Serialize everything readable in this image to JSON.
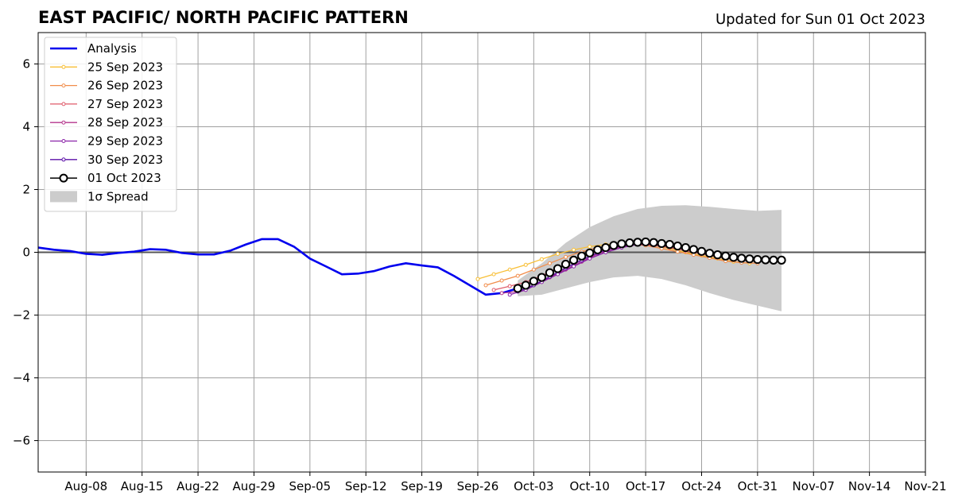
{
  "title": "EAST PACIFIC/ NORTH PACIFIC PATTERN",
  "subtitle": "Updated for Sun 01 Oct 2023",
  "chart_data": {
    "type": "line",
    "title": "EAST PACIFIC/ NORTH PACIFIC PATTERN",
    "subtitle": "Updated for Sun 01 Oct 2023",
    "xlabel": "",
    "ylabel": "",
    "x_range": [
      "2023-08-02",
      "2023-11-21"
    ],
    "ylim": [
      -7,
      7
    ],
    "x_ticks": [
      {
        "date": "2023-08-08",
        "label": "Aug-08"
      },
      {
        "date": "2023-08-15",
        "label": "Aug-15"
      },
      {
        "date": "2023-08-22",
        "label": "Aug-22"
      },
      {
        "date": "2023-08-29",
        "label": "Aug-29"
      },
      {
        "date": "2023-09-05",
        "label": "Sep-05"
      },
      {
        "date": "2023-09-12",
        "label": "Sep-12"
      },
      {
        "date": "2023-09-19",
        "label": "Sep-19"
      },
      {
        "date": "2023-09-26",
        "label": "Sep-26"
      },
      {
        "date": "2023-10-03",
        "label": "Oct-03"
      },
      {
        "date": "2023-10-10",
        "label": "Oct-10"
      },
      {
        "date": "2023-10-17",
        "label": "Oct-17"
      },
      {
        "date": "2023-10-24",
        "label": "Oct-24"
      },
      {
        "date": "2023-10-31",
        "label": "Oct-31"
      },
      {
        "date": "2023-11-07",
        "label": "Nov-07"
      },
      {
        "date": "2023-11-14",
        "label": "Nov-14"
      },
      {
        "date": "2023-11-21",
        "label": "Nov-21"
      }
    ],
    "y_ticks": [
      {
        "value": 6,
        "label": "6"
      },
      {
        "value": 4,
        "label": "4"
      },
      {
        "value": 2,
        "label": "2"
      },
      {
        "value": 0,
        "label": "0"
      },
      {
        "value": -2,
        "label": "−2"
      },
      {
        "value": -4,
        "label": "−4"
      },
      {
        "value": -6,
        "label": "−6"
      }
    ],
    "grid": true,
    "zero_line": true,
    "legend_position": "top-left",
    "analysis": {
      "name": "Analysis",
      "color": "#0000ee",
      "points": [
        [
          "2023-08-02",
          0.15
        ],
        [
          "2023-08-04",
          0.08
        ],
        [
          "2023-08-06",
          0.04
        ],
        [
          "2023-08-08",
          -0.05
        ],
        [
          "2023-08-10",
          -0.08
        ],
        [
          "2023-08-12",
          -0.02
        ],
        [
          "2023-08-14",
          0.02
        ],
        [
          "2023-08-16",
          0.1
        ],
        [
          "2023-08-18",
          0.08
        ],
        [
          "2023-08-20",
          -0.02
        ],
        [
          "2023-08-22",
          -0.07
        ],
        [
          "2023-08-24",
          -0.07
        ],
        [
          "2023-08-26",
          0.05
        ],
        [
          "2023-08-28",
          0.25
        ],
        [
          "2023-08-30",
          0.42
        ],
        [
          "2023-09-01",
          0.42
        ],
        [
          "2023-09-03",
          0.18
        ],
        [
          "2023-09-05",
          -0.2
        ],
        [
          "2023-09-07",
          -0.45
        ],
        [
          "2023-09-09",
          -0.7
        ],
        [
          "2023-09-11",
          -0.68
        ],
        [
          "2023-09-13",
          -0.6
        ],
        [
          "2023-09-15",
          -0.45
        ],
        [
          "2023-09-17",
          -0.35
        ],
        [
          "2023-09-19",
          -0.42
        ],
        [
          "2023-09-21",
          -0.48
        ],
        [
          "2023-09-23",
          -0.75
        ],
        [
          "2023-09-25",
          -1.05
        ],
        [
          "2023-09-27",
          -1.35
        ],
        [
          "2023-09-29",
          -1.3
        ],
        [
          "2023-10-01",
          -1.15
        ]
      ]
    },
    "forecasts": [
      {
        "name": "25 Sep 2023",
        "color": "#f8bf36",
        "points": [
          [
            "2023-09-26",
            -0.85
          ],
          [
            "2023-09-28",
            -0.7
          ],
          [
            "2023-09-30",
            -0.55
          ],
          [
            "2023-10-02",
            -0.4
          ],
          [
            "2023-10-04",
            -0.22
          ],
          [
            "2023-10-06",
            -0.05
          ],
          [
            "2023-10-08",
            0.08
          ],
          [
            "2023-10-10",
            0.18
          ],
          [
            "2023-10-12",
            0.25
          ],
          [
            "2023-10-14",
            0.28
          ],
          [
            "2023-10-16",
            0.3
          ],
          [
            "2023-10-18",
            0.22
          ],
          [
            "2023-10-20",
            0.12
          ],
          [
            "2023-10-22",
            0.0
          ],
          [
            "2023-10-24",
            -0.1
          ],
          [
            "2023-10-26",
            -0.2
          ],
          [
            "2023-10-28",
            -0.3
          ],
          [
            "2023-10-30",
            -0.35
          ]
        ]
      },
      {
        "name": "26 Sep 2023",
        "color": "#f18d4b",
        "points": [
          [
            "2023-09-27",
            -1.05
          ],
          [
            "2023-09-29",
            -0.9
          ],
          [
            "2023-10-01",
            -0.75
          ],
          [
            "2023-10-03",
            -0.55
          ],
          [
            "2023-10-05",
            -0.35
          ],
          [
            "2023-10-07",
            -0.15
          ],
          [
            "2023-10-09",
            0.02
          ],
          [
            "2023-10-11",
            0.15
          ],
          [
            "2023-10-13",
            0.22
          ],
          [
            "2023-10-15",
            0.26
          ],
          [
            "2023-10-17",
            0.22
          ],
          [
            "2023-10-19",
            0.12
          ],
          [
            "2023-10-21",
            0.02
          ],
          [
            "2023-10-23",
            -0.08
          ],
          [
            "2023-10-25",
            -0.18
          ],
          [
            "2023-10-27",
            -0.28
          ],
          [
            "2023-10-29",
            -0.33
          ],
          [
            "2023-10-31",
            -0.35
          ]
        ]
      },
      {
        "name": "27 Sep 2023",
        "color": "#df5a6a",
        "points": [
          [
            "2023-09-28",
            -1.2
          ],
          [
            "2023-09-30",
            -1.08
          ],
          [
            "2023-10-02",
            -0.95
          ],
          [
            "2023-10-04",
            -0.75
          ],
          [
            "2023-10-06",
            -0.5
          ],
          [
            "2023-10-08",
            -0.25
          ],
          [
            "2023-10-10",
            -0.05
          ],
          [
            "2023-10-12",
            0.1
          ],
          [
            "2023-10-14",
            0.2
          ],
          [
            "2023-10-16",
            0.25
          ],
          [
            "2023-10-18",
            0.22
          ],
          [
            "2023-10-20",
            0.15
          ],
          [
            "2023-10-22",
            0.05
          ],
          [
            "2023-10-24",
            -0.05
          ],
          [
            "2023-10-26",
            -0.15
          ],
          [
            "2023-10-28",
            -0.22
          ],
          [
            "2023-10-30",
            -0.28
          ]
        ]
      },
      {
        "name": "28 Sep 2023",
        "color": "#b4358c",
        "points": [
          [
            "2023-09-29",
            -1.3
          ],
          [
            "2023-10-01",
            -1.25
          ],
          [
            "2023-10-03",
            -1.05
          ],
          [
            "2023-10-05",
            -0.8
          ],
          [
            "2023-10-07",
            -0.55
          ],
          [
            "2023-10-09",
            -0.3
          ],
          [
            "2023-10-11",
            -0.05
          ],
          [
            "2023-10-13",
            0.12
          ],
          [
            "2023-10-15",
            0.22
          ],
          [
            "2023-10-17",
            0.26
          ],
          [
            "2023-10-19",
            0.22
          ],
          [
            "2023-10-21",
            0.15
          ],
          [
            "2023-10-23",
            0.05
          ],
          [
            "2023-10-25",
            -0.05
          ],
          [
            "2023-10-27",
            -0.12
          ],
          [
            "2023-10-29",
            -0.18
          ]
        ]
      },
      {
        "name": "29 Sep 2023",
        "color": "#8a22a8",
        "points": [
          [
            "2023-09-30",
            -1.35
          ],
          [
            "2023-10-02",
            -1.2
          ],
          [
            "2023-10-04",
            -0.95
          ],
          [
            "2023-10-06",
            -0.7
          ],
          [
            "2023-10-08",
            -0.45
          ],
          [
            "2023-10-10",
            -0.2
          ],
          [
            "2023-10-12",
            0.0
          ],
          [
            "2023-10-14",
            0.15
          ],
          [
            "2023-10-16",
            0.25
          ],
          [
            "2023-10-18",
            0.28
          ],
          [
            "2023-10-20",
            0.24
          ],
          [
            "2023-10-22",
            0.16
          ],
          [
            "2023-10-24",
            0.06
          ],
          [
            "2023-10-26",
            -0.04
          ],
          [
            "2023-10-28",
            -0.12
          ],
          [
            "2023-10-30",
            -0.18
          ]
        ]
      },
      {
        "name": "30 Sep 2023",
        "color": "#5c11a8",
        "points": [
          [
            "2023-10-01",
            -1.25
          ],
          [
            "2023-10-03",
            -1.05
          ],
          [
            "2023-10-05",
            -0.78
          ],
          [
            "2023-10-07",
            -0.5
          ],
          [
            "2023-10-09",
            -0.25
          ],
          [
            "2023-10-11",
            -0.02
          ],
          [
            "2023-10-13",
            0.15
          ],
          [
            "2023-10-15",
            0.25
          ],
          [
            "2023-10-17",
            0.3
          ],
          [
            "2023-10-19",
            0.26
          ],
          [
            "2023-10-21",
            0.18
          ],
          [
            "2023-10-23",
            0.08
          ],
          [
            "2023-10-25",
            -0.02
          ],
          [
            "2023-10-27",
            -0.1
          ],
          [
            "2023-10-29",
            -0.16
          ],
          [
            "2023-10-31",
            -0.2
          ]
        ]
      }
    ],
    "current_forecast": {
      "name": "01 Oct 2023",
      "color": "#000000",
      "marker_fill": "#ffffff",
      "points": [
        [
          "2023-10-01",
          -1.15
        ],
        [
          "2023-10-02",
          -1.05
        ],
        [
          "2023-10-03",
          -0.92
        ],
        [
          "2023-10-04",
          -0.8
        ],
        [
          "2023-10-05",
          -0.65
        ],
        [
          "2023-10-06",
          -0.52
        ],
        [
          "2023-10-07",
          -0.38
        ],
        [
          "2023-10-08",
          -0.25
        ],
        [
          "2023-10-09",
          -0.12
        ],
        [
          "2023-10-10",
          -0.02
        ],
        [
          "2023-10-11",
          0.08
        ],
        [
          "2023-10-12",
          0.15
        ],
        [
          "2023-10-13",
          0.22
        ],
        [
          "2023-10-14",
          0.27
        ],
        [
          "2023-10-15",
          0.3
        ],
        [
          "2023-10-16",
          0.32
        ],
        [
          "2023-10-17",
          0.33
        ],
        [
          "2023-10-18",
          0.31
        ],
        [
          "2023-10-19",
          0.28
        ],
        [
          "2023-10-20",
          0.25
        ],
        [
          "2023-10-21",
          0.2
        ],
        [
          "2023-10-22",
          0.15
        ],
        [
          "2023-10-23",
          0.09
        ],
        [
          "2023-10-24",
          0.03
        ],
        [
          "2023-10-25",
          -0.03
        ],
        [
          "2023-10-26",
          -0.08
        ],
        [
          "2023-10-27",
          -0.12
        ],
        [
          "2023-10-28",
          -0.16
        ],
        [
          "2023-10-29",
          -0.19
        ],
        [
          "2023-10-30",
          -0.21
        ],
        [
          "2023-10-31",
          -0.23
        ],
        [
          "2023-11-01",
          -0.24
        ],
        [
          "2023-11-02",
          -0.25
        ],
        [
          "2023-11-03",
          -0.25
        ]
      ]
    },
    "spread": {
      "name": "1σ Spread",
      "color": "#cccccc",
      "upper": [
        [
          "2023-10-01",
          -0.9
        ],
        [
          "2023-10-04",
          -0.35
        ],
        [
          "2023-10-07",
          0.3
        ],
        [
          "2023-10-10",
          0.8
        ],
        [
          "2023-10-13",
          1.15
        ],
        [
          "2023-10-16",
          1.38
        ],
        [
          "2023-10-19",
          1.48
        ],
        [
          "2023-10-22",
          1.5
        ],
        [
          "2023-10-25",
          1.45
        ],
        [
          "2023-10-28",
          1.38
        ],
        [
          "2023-10-31",
          1.32
        ],
        [
          "2023-11-03",
          1.35
        ]
      ],
      "lower": [
        [
          "2023-10-01",
          -1.4
        ],
        [
          "2023-10-04",
          -1.35
        ],
        [
          "2023-10-07",
          -1.15
        ],
        [
          "2023-10-10",
          -0.95
        ],
        [
          "2023-10-13",
          -0.8
        ],
        [
          "2023-10-16",
          -0.75
        ],
        [
          "2023-10-19",
          -0.85
        ],
        [
          "2023-10-22",
          -1.05
        ],
        [
          "2023-10-25",
          -1.3
        ],
        [
          "2023-10-28",
          -1.52
        ],
        [
          "2023-10-31",
          -1.7
        ],
        [
          "2023-11-03",
          -1.88
        ]
      ]
    }
  }
}
